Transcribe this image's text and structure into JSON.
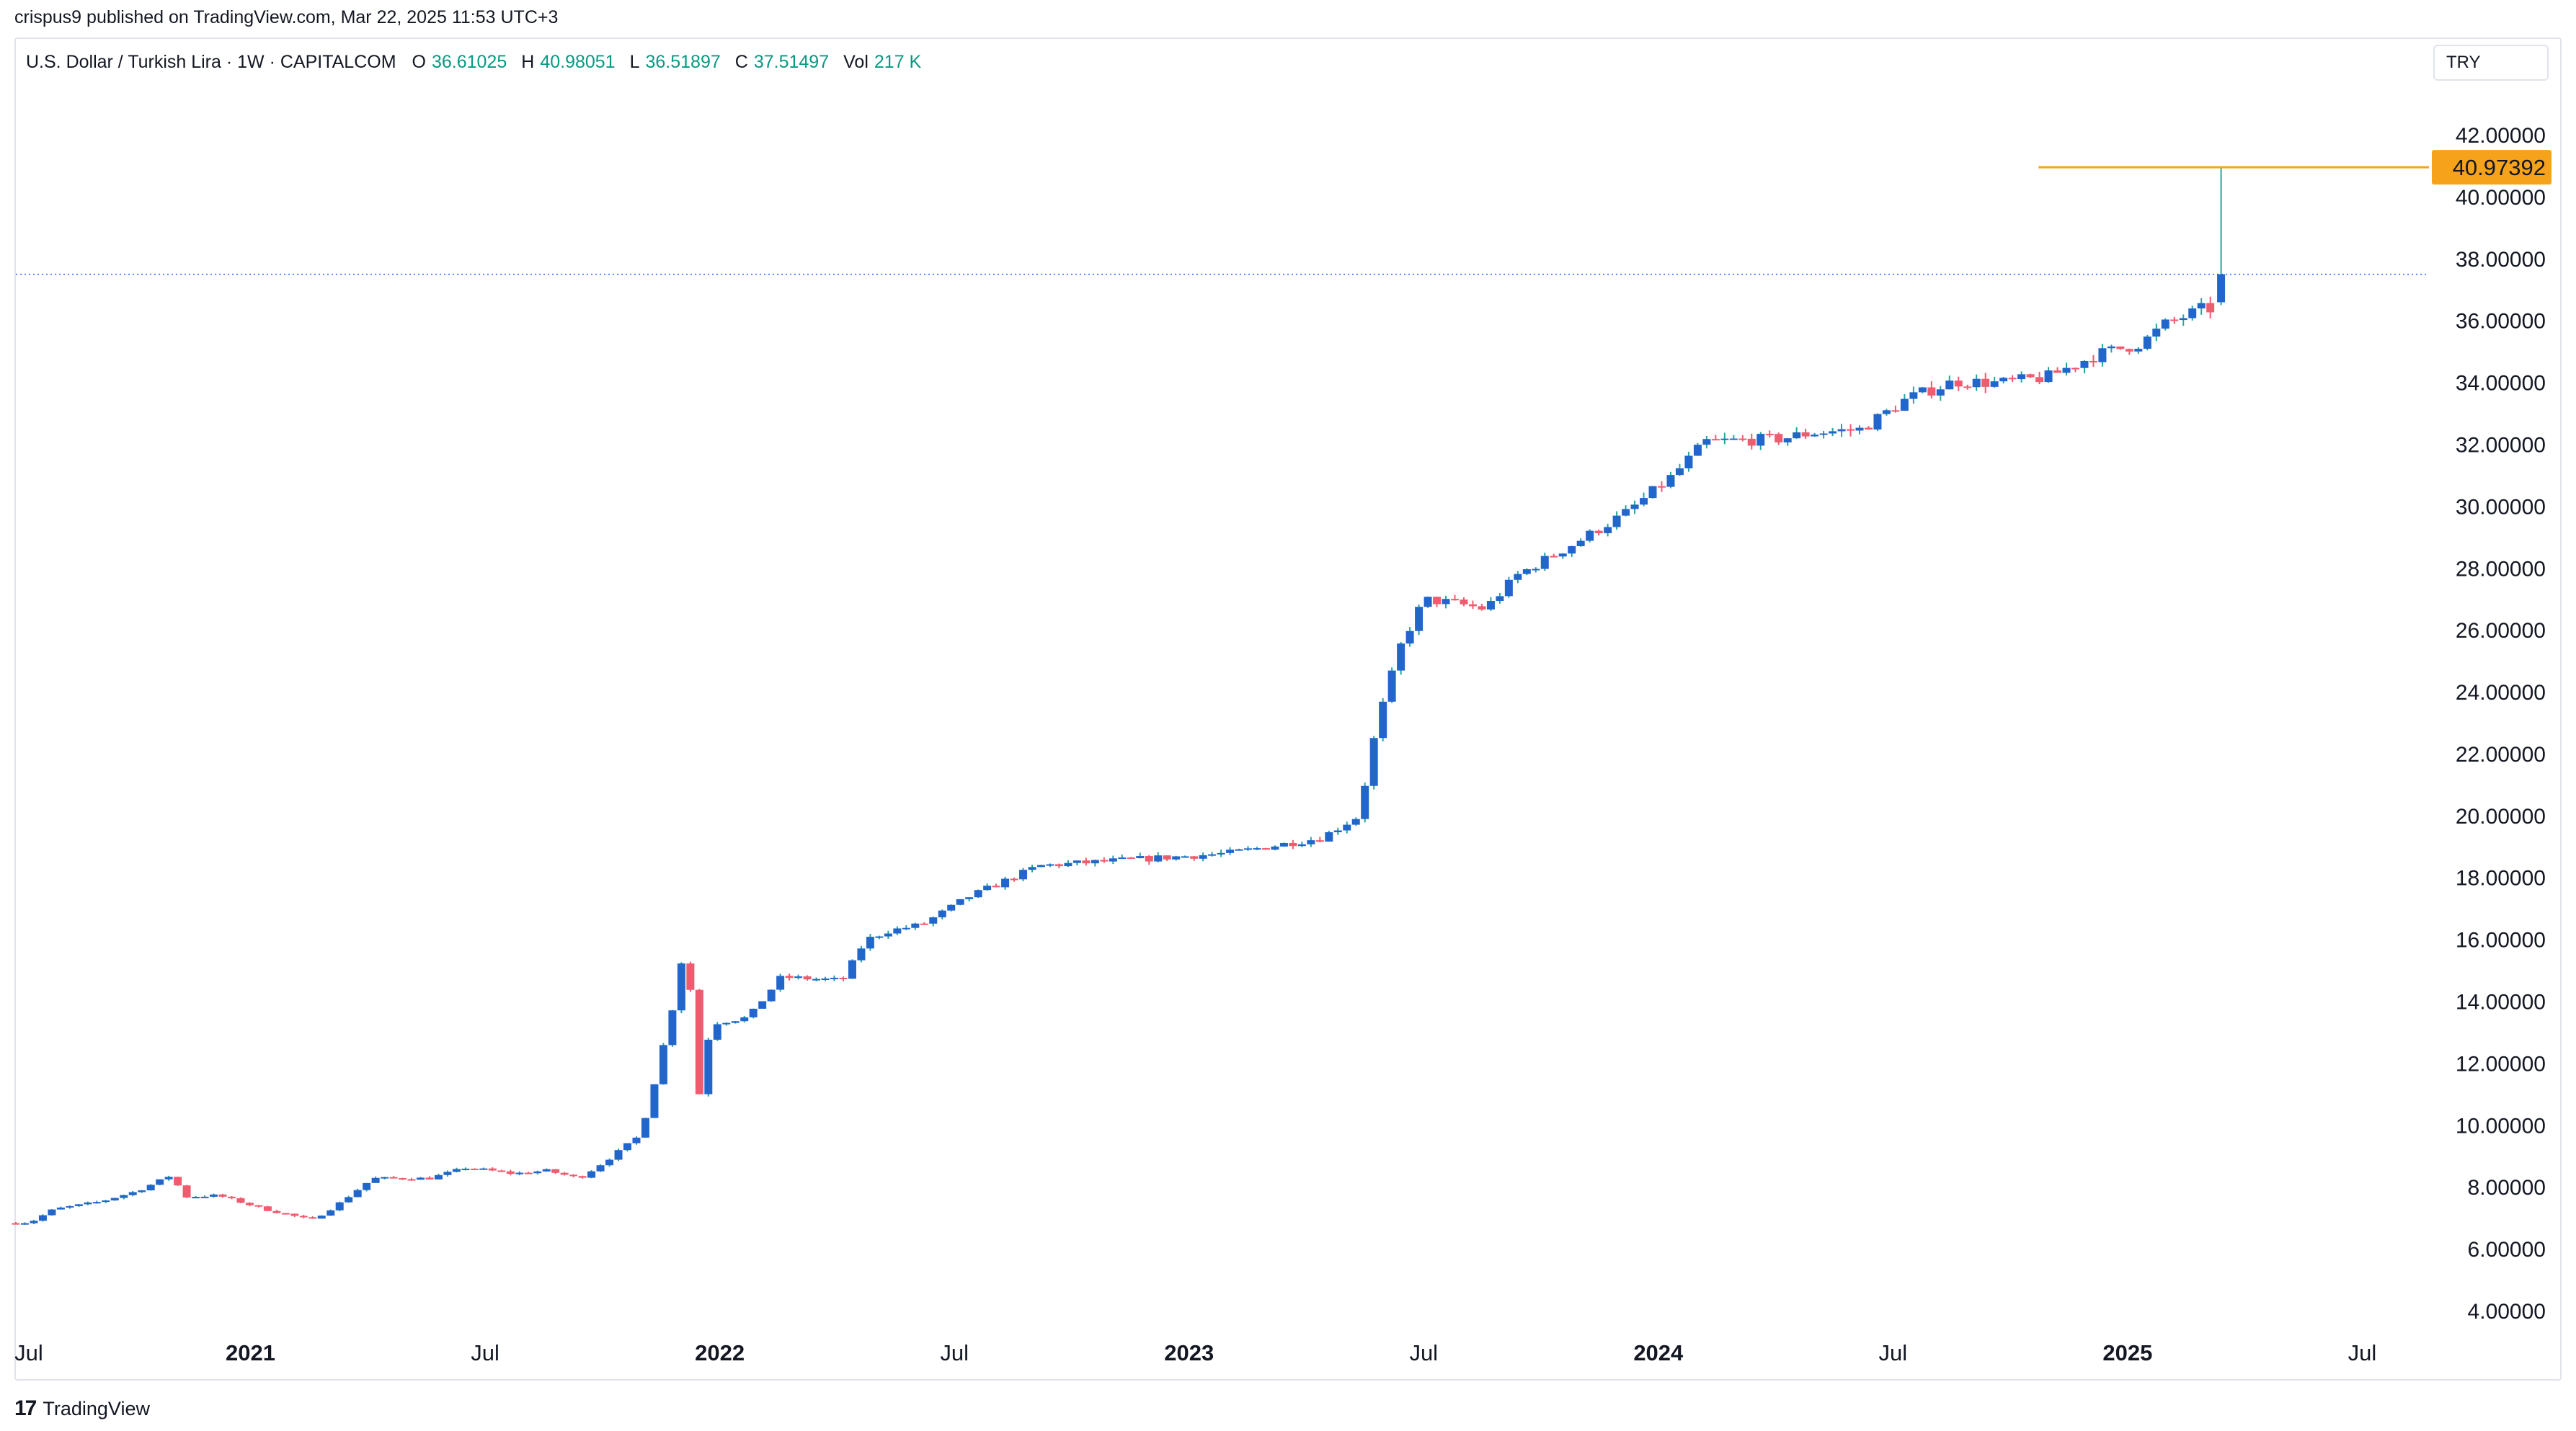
{
  "header": {
    "published_text": "crispus9 published on TradingView.com, Mar 22, 2025 11:53 UTC+3"
  },
  "legend": {
    "symbol": "U.S. Dollar / Turkish Lira · 1W · CAPITALCOM",
    "open_label": "O",
    "open_value": "36.61025",
    "high_label": "H",
    "high_value": "40.98051",
    "low_label": "L",
    "low_value": "36.51897",
    "close_label": "C",
    "close_value": "37.51497",
    "vol_label": "Vol",
    "vol_value": "217 K"
  },
  "currency_badge": "TRY",
  "footer": {
    "logo_text": "17",
    "brand": "TradingView"
  },
  "colors": {
    "up": "#2266cc",
    "down": "#ef5b6f",
    "wick_up": "#26a69a",
    "high_line": "#f7a21b",
    "last_price_line": "#2962ff",
    "grid_text": "#131722"
  },
  "chart_data": {
    "type": "candlestick",
    "interval": "1W",
    "y_axis": {
      "range": [
        3.0,
        43.0
      ],
      "ticks": [
        "4.00000",
        "6.00000",
        "8.00000",
        "10.00000",
        "12.00000",
        "14.00000",
        "16.00000",
        "18.00000",
        "20.00000",
        "22.00000",
        "24.00000",
        "26.00000",
        "28.00000",
        "30.00000",
        "32.00000",
        "34.00000",
        "36.00000",
        "38.00000",
        "40.00000",
        "42.00000"
      ],
      "tick_values": [
        4,
        6,
        8,
        10,
        12,
        14,
        16,
        18,
        20,
        22,
        24,
        26,
        28,
        30,
        32,
        34,
        36,
        38,
        40,
        42
      ],
      "position": "right"
    },
    "x_axis": {
      "range": [
        2020.5,
        2025.55
      ],
      "ticks": [
        {
          "label": "Jul",
          "t": 2020.5,
          "bold": false
        },
        {
          "label": "2021",
          "t": 2021.0,
          "bold": true
        },
        {
          "label": "Jul",
          "t": 2021.5,
          "bold": false
        },
        {
          "label": "2022",
          "t": 2022.0,
          "bold": true
        },
        {
          "label": "Jul",
          "t": 2022.5,
          "bold": false
        },
        {
          "label": "2023",
          "t": 2023.0,
          "bold": true
        },
        {
          "label": "Jul",
          "t": 2023.5,
          "bold": false
        },
        {
          "label": "2024",
          "t": 2024.0,
          "bold": true
        },
        {
          "label": "Jul",
          "t": 2024.5,
          "bold": false
        },
        {
          "label": "2025",
          "t": 2025.0,
          "bold": true
        },
        {
          "label": "Jul",
          "t": 2025.5,
          "bold": false
        }
      ]
    },
    "high_marker": {
      "value": 40.97392,
      "label": "40.97392",
      "start_t": 2024.81
    },
    "last_price": 37.51497,
    "grid": false,
    "anchors": [
      [
        2020.5,
        6.85
      ],
      [
        2020.55,
        6.88
      ],
      [
        2020.6,
        7.3
      ],
      [
        2020.7,
        7.55
      ],
      [
        2020.78,
        7.9
      ],
      [
        2020.85,
        8.4
      ],
      [
        2020.88,
        7.7
      ],
      [
        2020.95,
        7.75
      ],
      [
        2021.05,
        7.3
      ],
      [
        2021.15,
        6.95
      ],
      [
        2021.2,
        7.4
      ],
      [
        2021.28,
        8.3
      ],
      [
        2021.4,
        8.3
      ],
      [
        2021.48,
        8.65
      ],
      [
        2021.58,
        8.45
      ],
      [
        2021.65,
        8.55
      ],
      [
        2021.72,
        8.3
      ],
      [
        2021.78,
        8.9
      ],
      [
        2021.85,
        9.7
      ],
      [
        2021.88,
        11.4
      ],
      [
        2021.92,
        13.9
      ],
      [
        2021.95,
        16.3
      ],
      [
        2021.97,
        10.5
      ],
      [
        2022.0,
        13.3
      ],
      [
        2022.08,
        13.5
      ],
      [
        2022.15,
        14.8
      ],
      [
        2022.28,
        14.7
      ],
      [
        2022.33,
        16.0
      ],
      [
        2022.38,
        16.3
      ],
      [
        2022.45,
        16.5
      ],
      [
        2022.55,
        17.4
      ],
      [
        2022.7,
        18.4
      ],
      [
        2022.9,
        18.6
      ],
      [
        2023.1,
        18.8
      ],
      [
        2023.3,
        19.3
      ],
      [
        2023.38,
        20.0
      ],
      [
        2023.42,
        23.0
      ],
      [
        2023.47,
        25.5
      ],
      [
        2023.52,
        27.0
      ],
      [
        2023.58,
        26.9
      ],
      [
        2023.65,
        26.7
      ],
      [
        2023.72,
        27.8
      ],
      [
        2023.85,
        28.9
      ],
      [
        2023.95,
        29.8
      ],
      [
        2024.05,
        31.0
      ],
      [
        2024.12,
        32.1
      ],
      [
        2024.28,
        32.2
      ],
      [
        2024.35,
        32.4
      ],
      [
        2024.45,
        32.5
      ],
      [
        2024.55,
        33.5
      ],
      [
        2024.65,
        34.05
      ],
      [
        2024.75,
        34.0
      ],
      [
        2024.85,
        34.2
      ],
      [
        2024.95,
        34.9
      ],
      [
        2025.05,
        35.3
      ],
      [
        2025.1,
        35.9
      ],
      [
        2025.18,
        36.4
      ]
    ],
    "final_candle": {
      "open": 36.61025,
      "high": 40.98051,
      "low": 36.51897,
      "close": 37.51497
    }
  }
}
